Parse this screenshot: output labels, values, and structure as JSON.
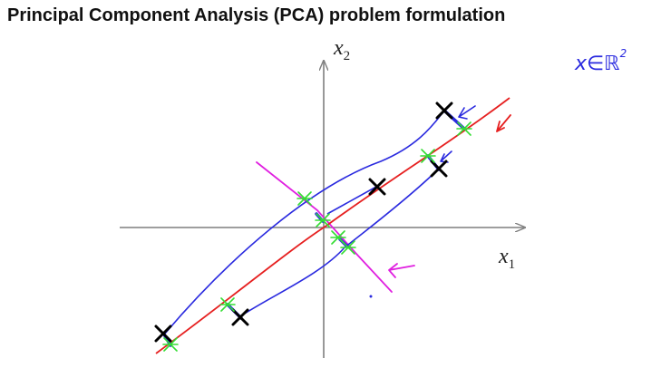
{
  "title": "Principal Component Analysis (PCA) problem formulation",
  "axes": {
    "x_label": "x",
    "x_subscript": "1",
    "y_label": "x",
    "y_subscript": "2"
  },
  "annotation": {
    "text": "x∈ℝ",
    "superscript": "2"
  },
  "colors": {
    "axis": "#7f7f7f",
    "principal_line": "#e62020",
    "candidate_line": "#e020e0",
    "projection": "#2a2adf",
    "data_point": "#000000",
    "projected_point": "#33dd33"
  }
}
